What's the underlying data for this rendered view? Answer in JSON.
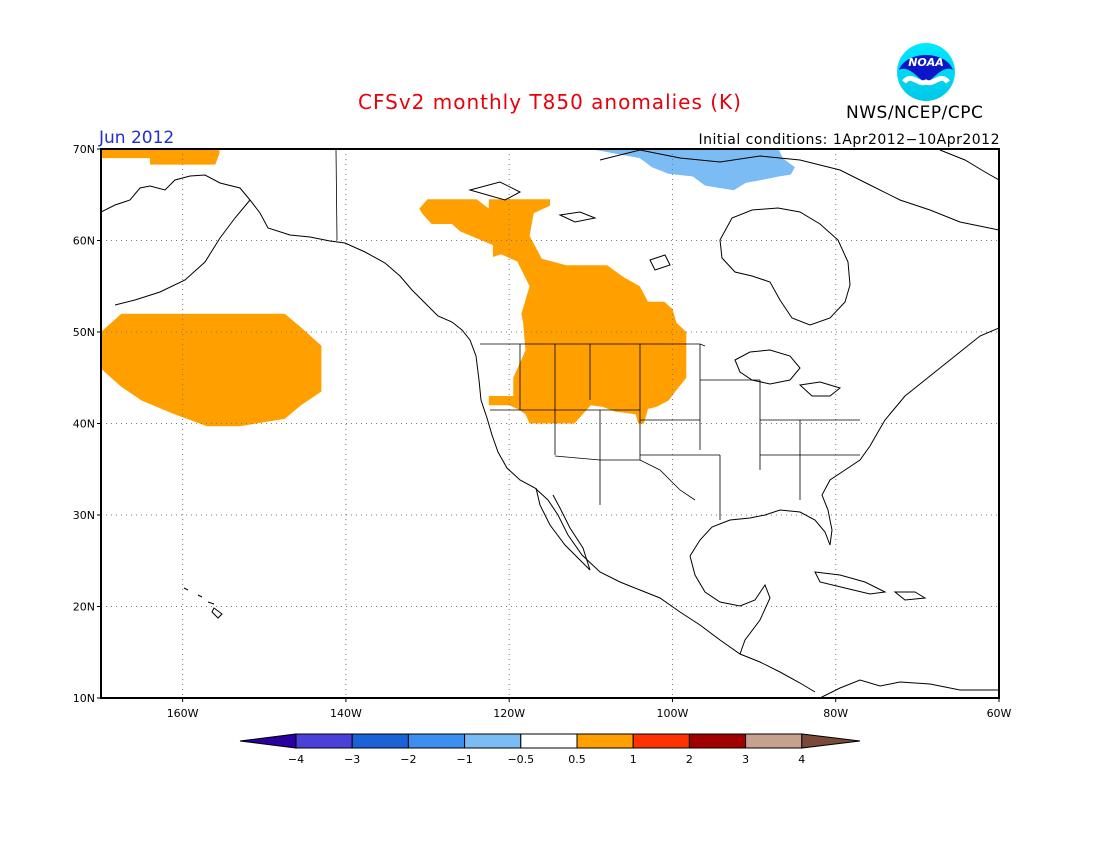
{
  "header": {
    "title": "CFSv2 monthly T850 anomalies (K)",
    "agency": "NWS/NCEP/CPC",
    "logo_text": "NOAA",
    "month": "Jun 2012",
    "initial_conditions": "Initial conditions: 1Apr2012−10Apr2012"
  },
  "map": {
    "lon_range": [
      -170,
      -60
    ],
    "lat_range": [
      10,
      70
    ],
    "lat_ticks": [
      {
        "value": 70,
        "label": "70N"
      },
      {
        "value": 60,
        "label": "60N"
      },
      {
        "value": 50,
        "label": "50N"
      },
      {
        "value": 40,
        "label": "40N"
      },
      {
        "value": 30,
        "label": "30N"
      },
      {
        "value": 20,
        "label": "20N"
      },
      {
        "value": 10,
        "label": "10N"
      }
    ],
    "lon_ticks": [
      {
        "value": -160,
        "label": "160W"
      },
      {
        "value": -140,
        "label": "140W"
      },
      {
        "value": -120,
        "label": "120W"
      },
      {
        "value": -100,
        "label": "100W"
      },
      {
        "value": -80,
        "label": "80W"
      },
      {
        "value": -60,
        "label": "60W"
      }
    ],
    "grid": "dotted",
    "anomaly_regions": [
      {
        "name": "north-pacific",
        "category": "0.5 to 1",
        "polygon": [
          [
            -167.5,
            52
          ],
          [
            -147.5,
            52
          ],
          [
            -145.5,
            50.5
          ],
          [
            -143,
            48.5
          ],
          [
            -143,
            43.5
          ],
          [
            -145.5,
            42
          ],
          [
            -147.5,
            40.5
          ],
          [
            -153,
            39.7
          ],
          [
            -157,
            39.7
          ],
          [
            -161,
            41
          ],
          [
            -165,
            42.5
          ],
          [
            -167.5,
            44
          ],
          [
            -170,
            46
          ],
          [
            -170,
            50
          ]
        ]
      },
      {
        "name": "alaska-north-coast",
        "category": "0.5 to 1",
        "polygon": [
          [
            -170,
            70
          ],
          [
            -155.5,
            70
          ],
          [
            -155.5,
            69.5
          ],
          [
            -156,
            68.3
          ],
          [
            -164,
            68.3
          ],
          [
            -164,
            69
          ],
          [
            -170,
            69
          ]
        ]
      },
      {
        "name": "western-canada-us",
        "category": "0.5 to 1",
        "polygon": [
          [
            -130,
            64.5
          ],
          [
            -124,
            64.5
          ],
          [
            -122.5,
            63.5
          ],
          [
            -122.5,
            64.5
          ],
          [
            -115,
            64.5
          ],
          [
            -115,
            63.8
          ],
          [
            -117,
            63
          ],
          [
            -117.5,
            60.5
          ],
          [
            -116,
            58
          ],
          [
            -113,
            57.3
          ],
          [
            -108,
            57.3
          ],
          [
            -106,
            56
          ],
          [
            -104,
            55
          ],
          [
            -103,
            53.3
          ],
          [
            -101,
            53.3
          ],
          [
            -100,
            52.5
          ],
          [
            -99.5,
            51
          ],
          [
            -98.3,
            50
          ],
          [
            -98.3,
            45
          ],
          [
            -99.2,
            44
          ],
          [
            -100.5,
            42.5
          ],
          [
            -102,
            41.8
          ],
          [
            -103,
            41.6
          ],
          [
            -103.5,
            40
          ],
          [
            -104.2,
            40
          ],
          [
            -104.5,
            41
          ],
          [
            -107,
            41.3
          ],
          [
            -108.5,
            41.8
          ],
          [
            -110,
            42
          ],
          [
            -111.5,
            40.5
          ],
          [
            -112,
            40
          ],
          [
            -115,
            40
          ],
          [
            -117.5,
            40
          ],
          [
            -118,
            41
          ],
          [
            -118.8,
            41.5
          ],
          [
            -120,
            42
          ],
          [
            -122.5,
            42
          ],
          [
            -122.5,
            43
          ],
          [
            -119.5,
            43
          ],
          [
            -119.5,
            45
          ],
          [
            -118,
            48
          ],
          [
            -118.3,
            51
          ],
          [
            -118.5,
            52
          ],
          [
            -117.5,
            55
          ],
          [
            -119,
            57.7
          ],
          [
            -121,
            58.5
          ],
          [
            -122,
            58.2
          ],
          [
            -122,
            59.5
          ],
          [
            -126,
            61
          ],
          [
            -127,
            61.8
          ],
          [
            -129.5,
            61.8
          ],
          [
            -130.7,
            63
          ],
          [
            -131,
            63.5
          ]
        ]
      },
      {
        "name": "canadian-arctic",
        "category": "-1 to -0.5",
        "polygon": [
          [
            -110,
            70
          ],
          [
            -87,
            70
          ],
          [
            -86.5,
            69
          ],
          [
            -85,
            68
          ],
          [
            -85.5,
            67.2
          ],
          [
            -87,
            67
          ],
          [
            -88,
            66.8
          ],
          [
            -91,
            66.3
          ],
          [
            -92.5,
            65.5
          ],
          [
            -94,
            65.7
          ],
          [
            -96,
            66
          ],
          [
            -97.5,
            67
          ],
          [
            -100.5,
            67.3
          ],
          [
            -102.5,
            68
          ],
          [
            -104,
            69
          ],
          [
            -107,
            69.5
          ]
        ]
      }
    ]
  },
  "colorbar": {
    "boundaries": [
      "−4",
      "−3",
      "−2",
      "−1",
      "−0.5",
      "0.5",
      "1",
      "2",
      "3",
      "4"
    ],
    "colors": [
      "#2a00a0",
      "#4a42d8",
      "#1a62d6",
      "#3d8ef0",
      "#7cbcf4",
      "#ffffff",
      "#ffa000",
      "#ff3200",
      "#a00000",
      "#c8a090",
      "#7a4a38"
    ]
  }
}
